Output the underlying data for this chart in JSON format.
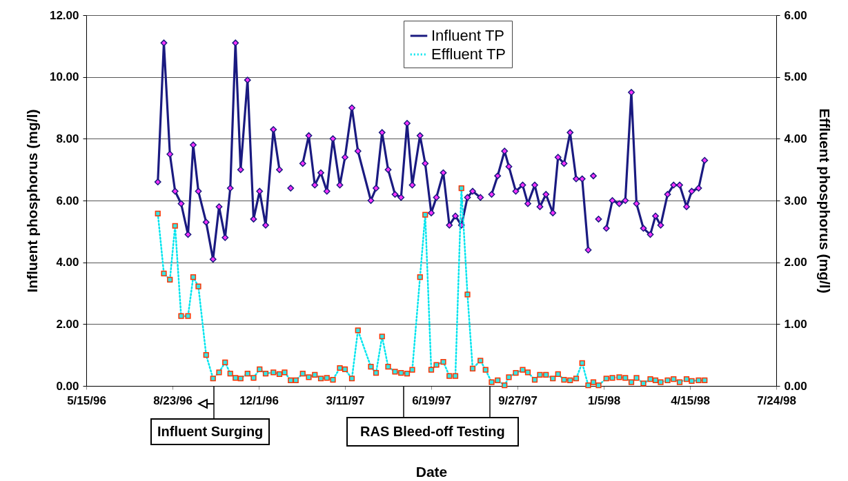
{
  "chart_data": {
    "type": "line",
    "xlabel": "Date",
    "ylabel": "Influent phosphorus (mg/l)",
    "y2label": "Effluent phosphorus (mg/l)",
    "xlim": [
      "1996-05-15",
      "1998-07-24"
    ],
    "xticks": [
      {
        "value": "1996-05-15",
        "label": "5/15/96"
      },
      {
        "value": "1996-08-23",
        "label": "8/23/96"
      },
      {
        "value": "1996-12-01",
        "label": "12/1/96"
      },
      {
        "value": "1997-03-11",
        "label": "3/11/97"
      },
      {
        "value": "1997-06-19",
        "label": "6/19/97"
      },
      {
        "value": "1997-09-27",
        "label": "9/27/97"
      },
      {
        "value": "1998-01-05",
        "label": "1/5/98"
      },
      {
        "value": "1998-04-15",
        "label": "4/15/98"
      },
      {
        "value": "1998-07-24",
        "label": "7/24/98"
      }
    ],
    "ylim": [
      0,
      12
    ],
    "yticks": [
      {
        "value": 0,
        "label": "0.00"
      },
      {
        "value": 2,
        "label": "2.00"
      },
      {
        "value": 4,
        "label": "4.00"
      },
      {
        "value": 6,
        "label": "6.00"
      },
      {
        "value": 8,
        "label": "8.00"
      },
      {
        "value": 10,
        "label": "10.00"
      },
      {
        "value": 12,
        "label": "12.00"
      }
    ],
    "y2lim": [
      0,
      6
    ],
    "y2ticks": [
      {
        "value": 0,
        "label": "0.00"
      },
      {
        "value": 1,
        "label": "1.00"
      },
      {
        "value": 2,
        "label": "2.00"
      },
      {
        "value": 3,
        "label": "3.00"
      },
      {
        "value": 4,
        "label": "4.00"
      },
      {
        "value": 5,
        "label": "5.00"
      },
      {
        "value": 6,
        "label": "6.00"
      }
    ],
    "grid": "y",
    "legend": "top",
    "annotations": [
      "Influent Surging",
      "RAS Bleed-off Testing"
    ],
    "series": [
      {
        "name": "Influent TP",
        "color": "#1a1a80",
        "marker": "diamond",
        "line_style": "solid",
        "x": [
          "1996-08-06",
          "1996-08-13",
          "1996-08-20",
          "1996-08-26",
          "1996-09-02",
          "1996-09-10",
          "1996-09-16",
          "1996-09-22",
          "1996-10-01",
          "1996-10-09",
          "1996-10-16",
          "1996-10-23",
          "1996-10-29",
          "1996-11-04",
          "1996-11-10",
          "1996-11-18",
          "1996-11-25",
          "1996-12-02",
          "1996-12-09",
          "1996-12-18",
          "1996-12-25",
          "1996-12-31",
          "1997-01-07",
          "1997-01-13",
          "1997-01-21",
          "1997-01-28",
          "1997-02-04",
          "1997-02-11",
          "1997-02-18",
          "1997-02-25",
          "1997-03-05",
          "1997-03-11",
          "1997-03-19",
          "1997-03-26",
          "1997-04-10",
          "1997-04-16",
          "1997-04-23",
          "1997-04-30",
          "1997-05-08",
          "1997-05-15",
          "1997-05-22",
          "1997-05-28",
          "1997-06-06",
          "1997-06-12",
          "1997-06-19",
          "1997-06-25",
          "1997-07-03",
          "1997-07-10",
          "1997-07-17",
          "1997-07-24",
          "1997-07-31",
          "1997-08-06",
          "1997-08-15",
          "1997-08-21",
          "1997-08-28",
          "1997-09-04",
          "1997-09-12",
          "1997-09-17",
          "1997-09-25",
          "1997-10-03",
          "1997-10-09",
          "1997-10-17",
          "1997-10-23",
          "1997-10-30",
          "1997-11-07",
          "1997-11-13",
          "1997-11-20",
          "1997-11-27",
          "1997-12-04",
          "1997-12-11",
          "1997-12-18",
          "1997-12-21",
          "1997-12-24",
          "1997-12-27",
          "1997-12-30",
          "1998-01-04",
          "1998-01-08",
          "1998-01-15",
          "1998-01-23",
          "1998-01-30",
          "1998-02-06",
          "1998-02-12",
          "1998-02-20",
          "1998-02-28",
          "1998-03-06",
          "1998-03-12",
          "1998-03-20",
          "1998-03-27",
          "1998-04-03",
          "1998-04-11",
          "1998-04-17",
          "1998-04-25",
          "1998-05-02"
        ],
        "values": [
          6.6,
          11.1,
          7.5,
          6.3,
          5.9,
          4.9,
          7.8,
          6.3,
          5.3,
          4.1,
          5.8,
          4.8,
          6.4,
          11.1,
          7.0,
          9.9,
          5.4,
          6.3,
          5.2,
          8.3,
          7.0,
          null,
          6.4,
          null,
          7.2,
          8.1,
          6.5,
          6.9,
          6.3,
          8.0,
          6.5,
          7.4,
          9.0,
          7.6,
          6.0,
          6.4,
          8.2,
          7.0,
          6.2,
          6.1,
          8.5,
          6.5,
          8.1,
          7.2,
          5.6,
          6.1,
          6.9,
          5.2,
          5.5,
          5.2,
          6.1,
          6.3,
          6.1,
          null,
          6.2,
          6.8,
          7.6,
          7.1,
          6.3,
          6.5,
          5.9,
          6.5,
          5.8,
          6.2,
          5.6,
          7.4,
          7.2,
          8.2,
          6.7,
          6.7,
          4.4,
          null,
          6.8,
          null,
          5.4,
          null,
          5.1,
          6.0,
          5.9,
          6.0,
          9.5,
          5.9,
          5.1,
          4.9,
          5.5,
          5.2,
          6.2,
          6.5,
          6.5,
          5.8,
          6.3,
          6.4,
          7.3
        ]
      },
      {
        "name": "Effluent TP",
        "color": "#00e5ee",
        "marker": "square",
        "line_style": "dotted",
        "axis": "y2",
        "x": [
          "1996-08-06",
          "1996-08-13",
          "1996-08-20",
          "1996-08-26",
          "1996-09-02",
          "1996-09-10",
          "1996-09-16",
          "1996-09-22",
          "1996-10-01",
          "1996-10-09",
          "1996-10-16",
          "1996-10-23",
          "1996-10-29",
          "1996-11-04",
          "1996-11-10",
          "1996-11-18",
          "1996-11-25",
          "1996-12-02",
          "1996-12-09",
          "1996-12-18",
          "1996-12-25",
          "1996-12-31",
          "1997-01-07",
          "1997-01-13",
          "1997-01-21",
          "1997-01-28",
          "1997-02-04",
          "1997-02-11",
          "1997-02-18",
          "1997-02-25",
          "1997-03-05",
          "1997-03-11",
          "1997-03-19",
          "1997-03-26",
          "1997-04-10",
          "1997-04-16",
          "1997-04-23",
          "1997-04-30",
          "1997-05-08",
          "1997-05-15",
          "1997-05-22",
          "1997-05-28",
          "1997-06-06",
          "1997-06-12",
          "1997-06-19",
          "1997-06-25",
          "1997-07-03",
          "1997-07-10",
          "1997-07-17",
          "1997-07-24",
          "1997-07-31",
          "1997-08-06",
          "1997-08-15",
          "1997-08-21",
          "1997-08-28",
          "1997-09-04",
          "1997-09-12",
          "1997-09-17",
          "1997-09-25",
          "1997-10-03",
          "1997-10-09",
          "1997-10-17",
          "1997-10-23",
          "1997-10-30",
          "1997-11-07",
          "1997-11-13",
          "1997-11-20",
          "1997-11-27",
          "1997-12-04",
          "1997-12-11",
          "1997-12-18",
          "1997-12-24",
          "1997-12-30",
          "1998-01-08",
          "1998-01-15",
          "1998-01-23",
          "1998-01-30",
          "1998-02-06",
          "1998-02-12",
          "1998-02-20",
          "1998-02-28",
          "1998-03-06",
          "1998-03-12",
          "1998-03-20",
          "1998-03-27",
          "1998-04-03",
          "1998-04-11",
          "1998-04-17",
          "1998-04-25",
          "1998-05-02"
        ],
        "values": [
          2.79,
          1.82,
          1.72,
          2.59,
          1.13,
          1.13,
          1.76,
          1.61,
          0.5,
          0.12,
          0.22,
          0.38,
          0.2,
          0.13,
          0.12,
          0.2,
          0.13,
          0.27,
          0.2,
          0.22,
          0.19,
          0.22,
          0.09,
          0.09,
          0.2,
          0.14,
          0.18,
          0.12,
          0.13,
          0.1,
          0.29,
          0.27,
          0.12,
          0.9,
          0.31,
          0.21,
          0.8,
          0.31,
          0.23,
          0.21,
          0.2,
          0.26,
          1.76,
          2.77,
          0.26,
          0.34,
          0.39,
          0.16,
          0.16,
          3.2,
          1.48,
          0.28,
          0.41,
          0.26,
          0.06,
          0.09,
          0.01,
          0.14,
          0.21,
          0.26,
          0.22,
          0.1,
          0.18,
          0.18,
          0.12,
          0.19,
          0.1,
          0.09,
          0.12,
          0.37,
          0.01,
          0.06,
          0.01,
          0.12,
          0.13,
          0.14,
          0.13,
          0.06,
          0.13,
          0.04,
          0.11,
          0.09,
          0.06,
          0.09,
          0.11,
          0.06,
          0.11,
          0.08,
          0.09,
          0.09
        ]
      }
    ]
  }
}
